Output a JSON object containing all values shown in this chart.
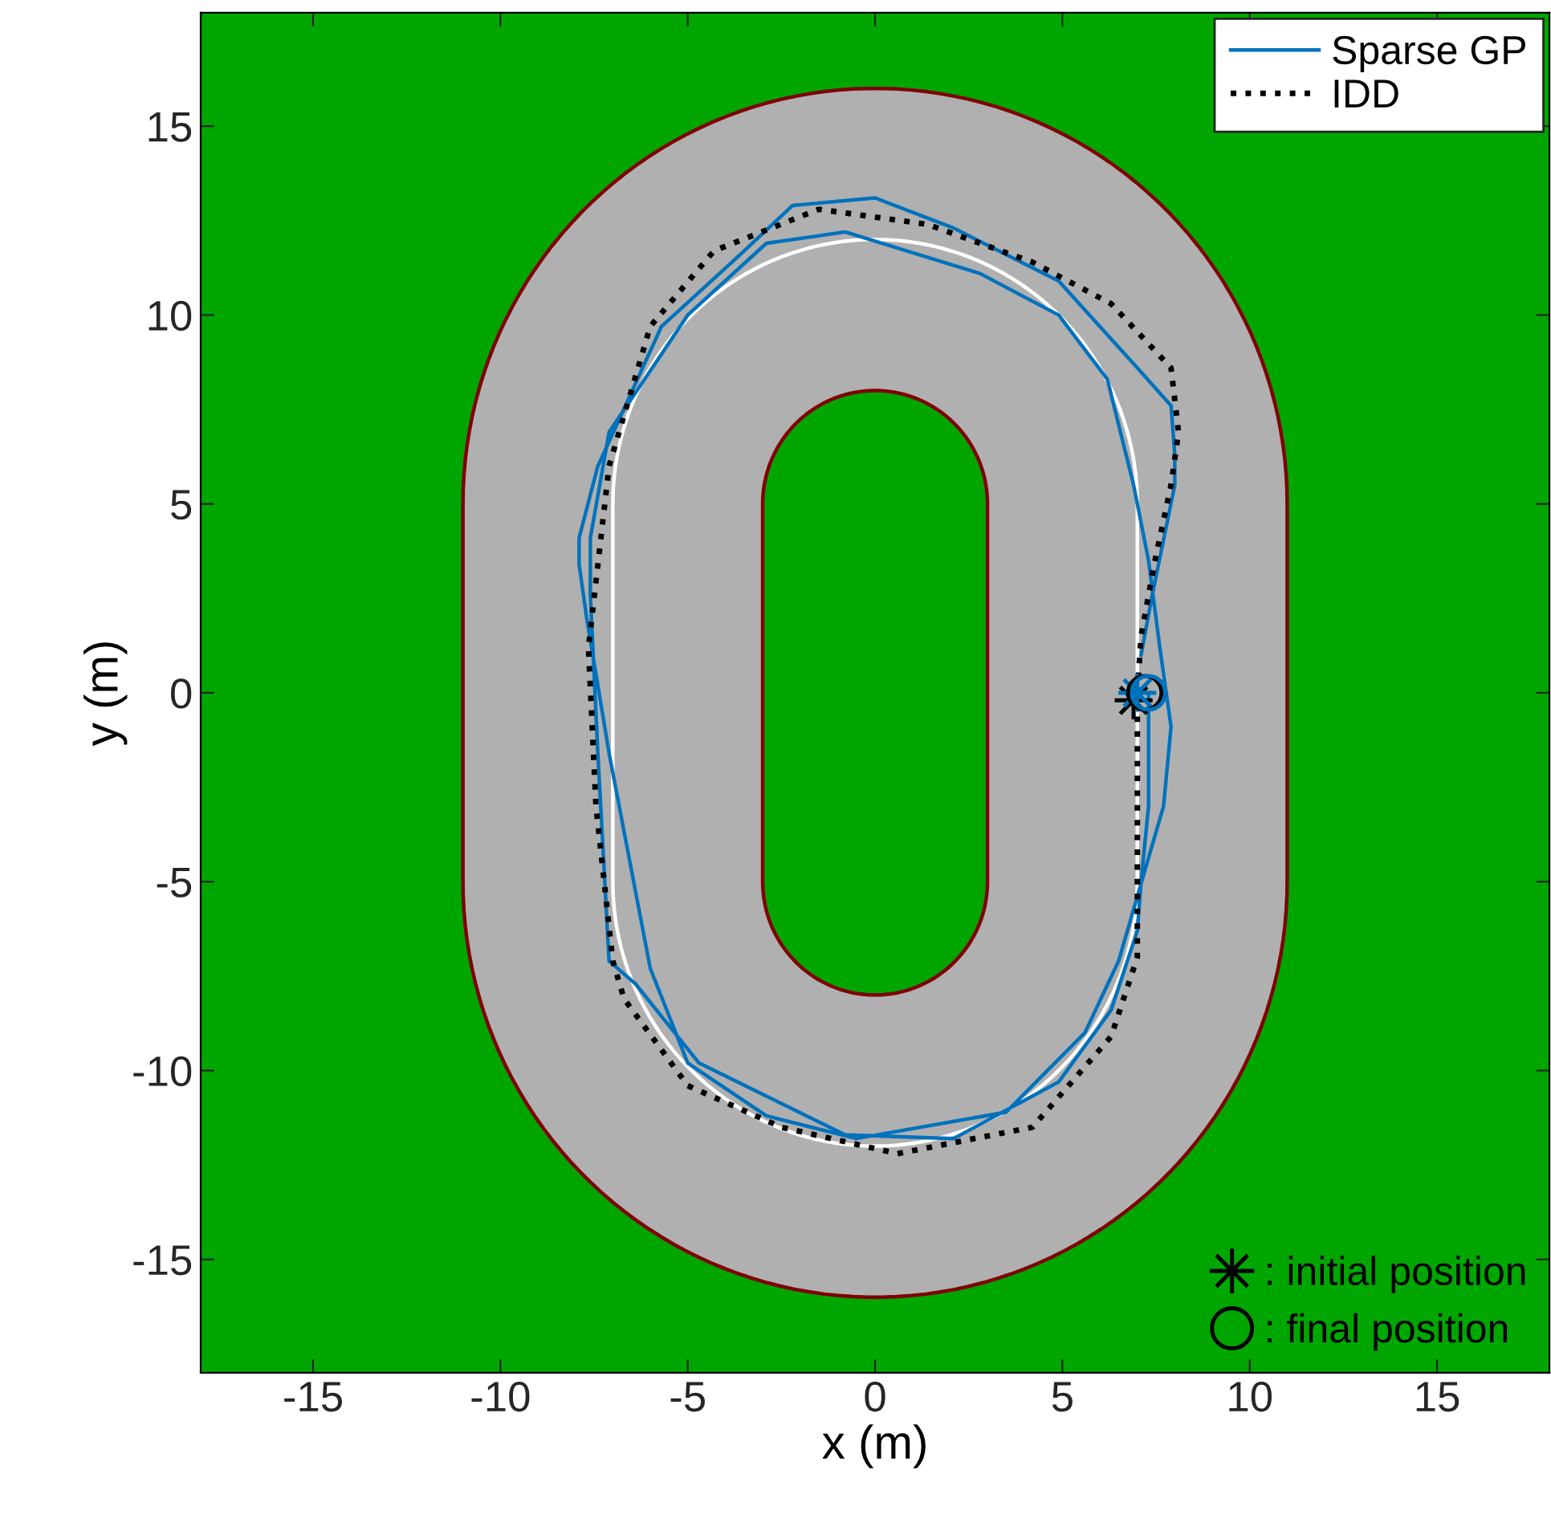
{
  "chart_data": {
    "type": "line",
    "xlabel": "x (m)",
    "ylabel": "y (m)",
    "xlim": [
      -18,
      18
    ],
    "ylim": [
      -18,
      18
    ],
    "xticks": [
      -15,
      -10,
      -5,
      0,
      5,
      10,
      15
    ],
    "yticks": [
      -15,
      -10,
      -5,
      0,
      5,
      10,
      15
    ],
    "grid": false,
    "legend": [
      "top right",
      "bottom right"
    ],
    "series": [
      {
        "name": "Sparse GP",
        "color": "#0072bd",
        "line_style": "solid",
        "x": [
          7.1,
          7.4,
          8.0,
          8.0,
          7.9,
          7.0,
          4.9,
          2.1,
          0,
          -2.2,
          -3.6,
          -5.7,
          -7.4,
          -7.9,
          -7.9,
          -7.7,
          -7.1,
          -6.0,
          -5.0,
          -2.9,
          -0.5,
          3.5,
          5.6,
          6.5,
          7.7,
          7.9,
          7.6,
          7.3,
          6.9,
          6.2,
          4.9,
          2.8,
          -0.8,
          -2.9,
          -5.0,
          -7.1,
          -7.6,
          -7.6,
          -7.4,
          -7.1,
          -6.4,
          -4.7,
          -0.8,
          2.1,
          4.9,
          6.3,
          7.0,
          7.1,
          7.3,
          7.3
        ],
        "values": [
          1.0,
          2.6,
          5.5,
          6.3,
          7.6,
          8.6,
          10.9,
          12.3,
          13.1,
          12.9,
          11.6,
          9.7,
          6.0,
          4.1,
          3.4,
          2.0,
          -1.6,
          -7.3,
          -9.8,
          -11.2,
          -11.8,
          -11.1,
          -9.0,
          -7.1,
          -3.0,
          -0.9,
          1.2,
          3.5,
          5.5,
          8.3,
          10.0,
          11.1,
          12.2,
          11.9,
          10.0,
          6.9,
          4.1,
          2.6,
          -1.6,
          -7.1,
          -7.7,
          -9.8,
          -11.7,
          -11.8,
          -10.3,
          -8.4,
          -6.3,
          -5.0,
          -3.0,
          0
        ]
      },
      {
        "name": "IDD",
        "color": "#000000",
        "line_style": "dotted",
        "x": [
          7.0,
          7.1,
          7.45,
          7.9,
          8.1,
          7.9,
          6.3,
          4.2,
          1.4,
          -1.5,
          -4.3,
          -6.0,
          -7.1,
          -7.65,
          -7.45,
          -7.0,
          -6.7,
          -5.0,
          -2.5,
          0.6,
          4.2,
          6.3,
          7.0,
          7.0,
          7.0
        ],
        "values": [
          0,
          1.5,
          3.4,
          5.5,
          6.9,
          8.6,
          10.3,
          11.4,
          12.4,
          12.8,
          11.7,
          9.7,
          6.0,
          1.2,
          -3.0,
          -7.1,
          -8.1,
          -10.4,
          -11.5,
          -12.2,
          -11.5,
          -9.1,
          -7.0,
          -3.5,
          -0.4
        ]
      },
      {
        "type": "scatter",
        "name": ": initial position",
        "marker": "star",
        "colors": [
          "#000000",
          "#0072bd"
        ],
        "x": [
          6.9,
          7.0
        ],
        "values": [
          -0.2,
          0
        ]
      },
      {
        "type": "scatter",
        "name": ": final position",
        "marker": "circle",
        "colors": [
          "#000000",
          "#0072bd"
        ],
        "x": [
          7.2,
          7.3
        ],
        "values": [
          0,
          0
        ]
      }
    ]
  }
}
